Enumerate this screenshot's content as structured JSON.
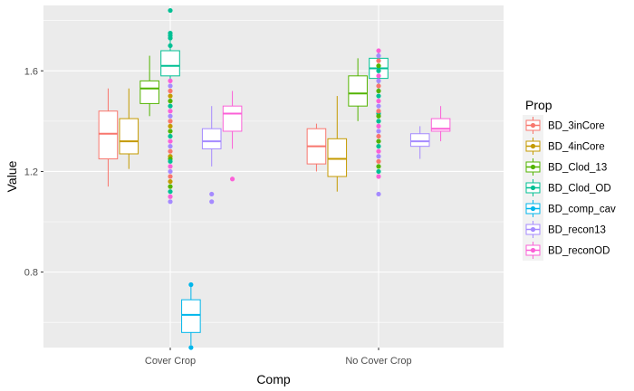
{
  "chart_data": {
    "type": "boxplot",
    "xlabel": "Comp",
    "ylabel": "Value",
    "categories": [
      "Cover Crop",
      "No Cover Crop"
    ],
    "ylim": [
      0.5,
      1.86
    ],
    "y_ticks": [
      0.8,
      1.2,
      1.6
    ],
    "y_tick_labels": [
      "0.8",
      "1.2",
      "1.6"
    ],
    "grid": true,
    "legend": {
      "title": "Prop",
      "position": "right"
    },
    "series": [
      {
        "name": "BD_3inCore",
        "color": "#F8766D",
        "boxes": [
          {
            "category": "Cover Crop",
            "q1": 1.25,
            "median": 1.35,
            "q3": 1.44,
            "whisker_low": 1.14,
            "whisker_high": 1.53,
            "outliers": []
          },
          {
            "category": "No Cover Crop",
            "q1": 1.23,
            "median": 1.3,
            "q3": 1.37,
            "whisker_low": 1.2,
            "whisker_high": 1.39,
            "outliers": []
          }
        ]
      },
      {
        "name": "BD_4inCore",
        "color": "#C49A00",
        "boxes": [
          {
            "category": "Cover Crop",
            "q1": 1.27,
            "median": 1.32,
            "q3": 1.41,
            "whisker_low": 1.21,
            "whisker_high": 1.53,
            "outliers": []
          },
          {
            "category": "No Cover Crop",
            "q1": 1.18,
            "median": 1.25,
            "q3": 1.33,
            "whisker_low": 1.12,
            "whisker_high": 1.5,
            "outliers": []
          }
        ]
      },
      {
        "name": "BD_Clod_13",
        "color": "#53B400",
        "boxes": [
          {
            "category": "Cover Crop",
            "q1": 1.47,
            "median": 1.53,
            "q3": 1.56,
            "whisker_low": 1.42,
            "whisker_high": 1.66,
            "outliers": []
          },
          {
            "category": "No Cover Crop",
            "q1": 1.46,
            "median": 1.51,
            "q3": 1.58,
            "whisker_low": 1.4,
            "whisker_high": 1.65,
            "outliers": []
          }
        ]
      },
      {
        "name": "BD_Clod_OD",
        "color": "#00C094",
        "boxes": [
          {
            "category": "Cover Crop",
            "q1": 1.58,
            "median": 1.62,
            "q3": 1.68,
            "whisker_low": 1.56,
            "whisker_high": 1.72,
            "outliers": [
              1.84,
              1.75,
              1.74,
              1.73,
              1.7
            ]
          },
          {
            "category": "No Cover Crop",
            "q1": 1.57,
            "median": 1.61,
            "q3": 1.65,
            "whisker_low": 1.52,
            "whisker_high": 1.68,
            "outliers": [
              1.43
            ]
          }
        ]
      },
      {
        "name": "BD_comp_cav",
        "color": "#00B6EB",
        "boxes": [
          {
            "category": "Cover Crop",
            "q1": 0.56,
            "median": 0.63,
            "q3": 0.69,
            "whisker_low": 0.51,
            "whisker_high": 0.75,
            "outliers": [
              0.75,
              0.5
            ]
          },
          {
            "category": "No Cover Crop",
            "q1": null,
            "median": null,
            "q3": null,
            "whisker_low": null,
            "whisker_high": null,
            "outliers": []
          }
        ]
      },
      {
        "name": "BD_recon13",
        "color": "#A58AFF",
        "boxes": [
          {
            "category": "Cover Crop",
            "q1": 1.29,
            "median": 1.32,
            "q3": 1.37,
            "whisker_low": 1.22,
            "whisker_high": 1.46,
            "outliers": [
              1.11,
              1.08
            ]
          },
          {
            "category": "No Cover Crop",
            "q1": 1.3,
            "median": 1.32,
            "q3": 1.35,
            "whisker_low": 1.25,
            "whisker_high": 1.38,
            "outliers": []
          }
        ]
      },
      {
        "name": "BD_reconOD",
        "color": "#FB61D7",
        "boxes": [
          {
            "category": "Cover Crop",
            "q1": 1.36,
            "median": 1.43,
            "q3": 1.46,
            "whisker_low": 1.29,
            "whisker_high": 1.52,
            "outliers": [
              1.17
            ]
          },
          {
            "category": "No Cover Crop",
            "q1": 1.36,
            "median": 1.37,
            "q3": 1.41,
            "whisker_low": 1.32,
            "whisker_high": 1.46,
            "outliers": []
          }
        ]
      }
    ],
    "strip_points": [
      {
        "category": "Cover Crop",
        "colors": [
          "#FB61D7",
          "#A58AFF",
          "#F8766D",
          "#C49A00",
          "#53B400",
          "#00C094"
        ],
        "values": [
          1.56,
          1.54,
          1.52,
          1.5,
          1.48,
          1.46,
          1.44,
          1.42,
          1.4,
          1.38,
          1.36,
          1.34,
          1.32,
          1.3,
          1.28,
          1.26,
          1.25,
          1.24,
          1.22,
          1.2,
          1.18,
          1.16,
          1.14,
          1.12,
          1.1,
          1.08
        ]
      },
      {
        "category": "No Cover Crop",
        "colors": [
          "#FB61D7",
          "#A58AFF",
          "#F8766D",
          "#53B400",
          "#00C094"
        ],
        "values": [
          1.68,
          1.66,
          1.64,
          1.62,
          1.6,
          1.58,
          1.56,
          1.54,
          1.52,
          1.5,
          1.48,
          1.46,
          1.44,
          1.42,
          1.4,
          1.38,
          1.36,
          1.34,
          1.32,
          1.3,
          1.28,
          1.26,
          1.24,
          1.22,
          1.2,
          1.18,
          1.11
        ]
      }
    ]
  }
}
